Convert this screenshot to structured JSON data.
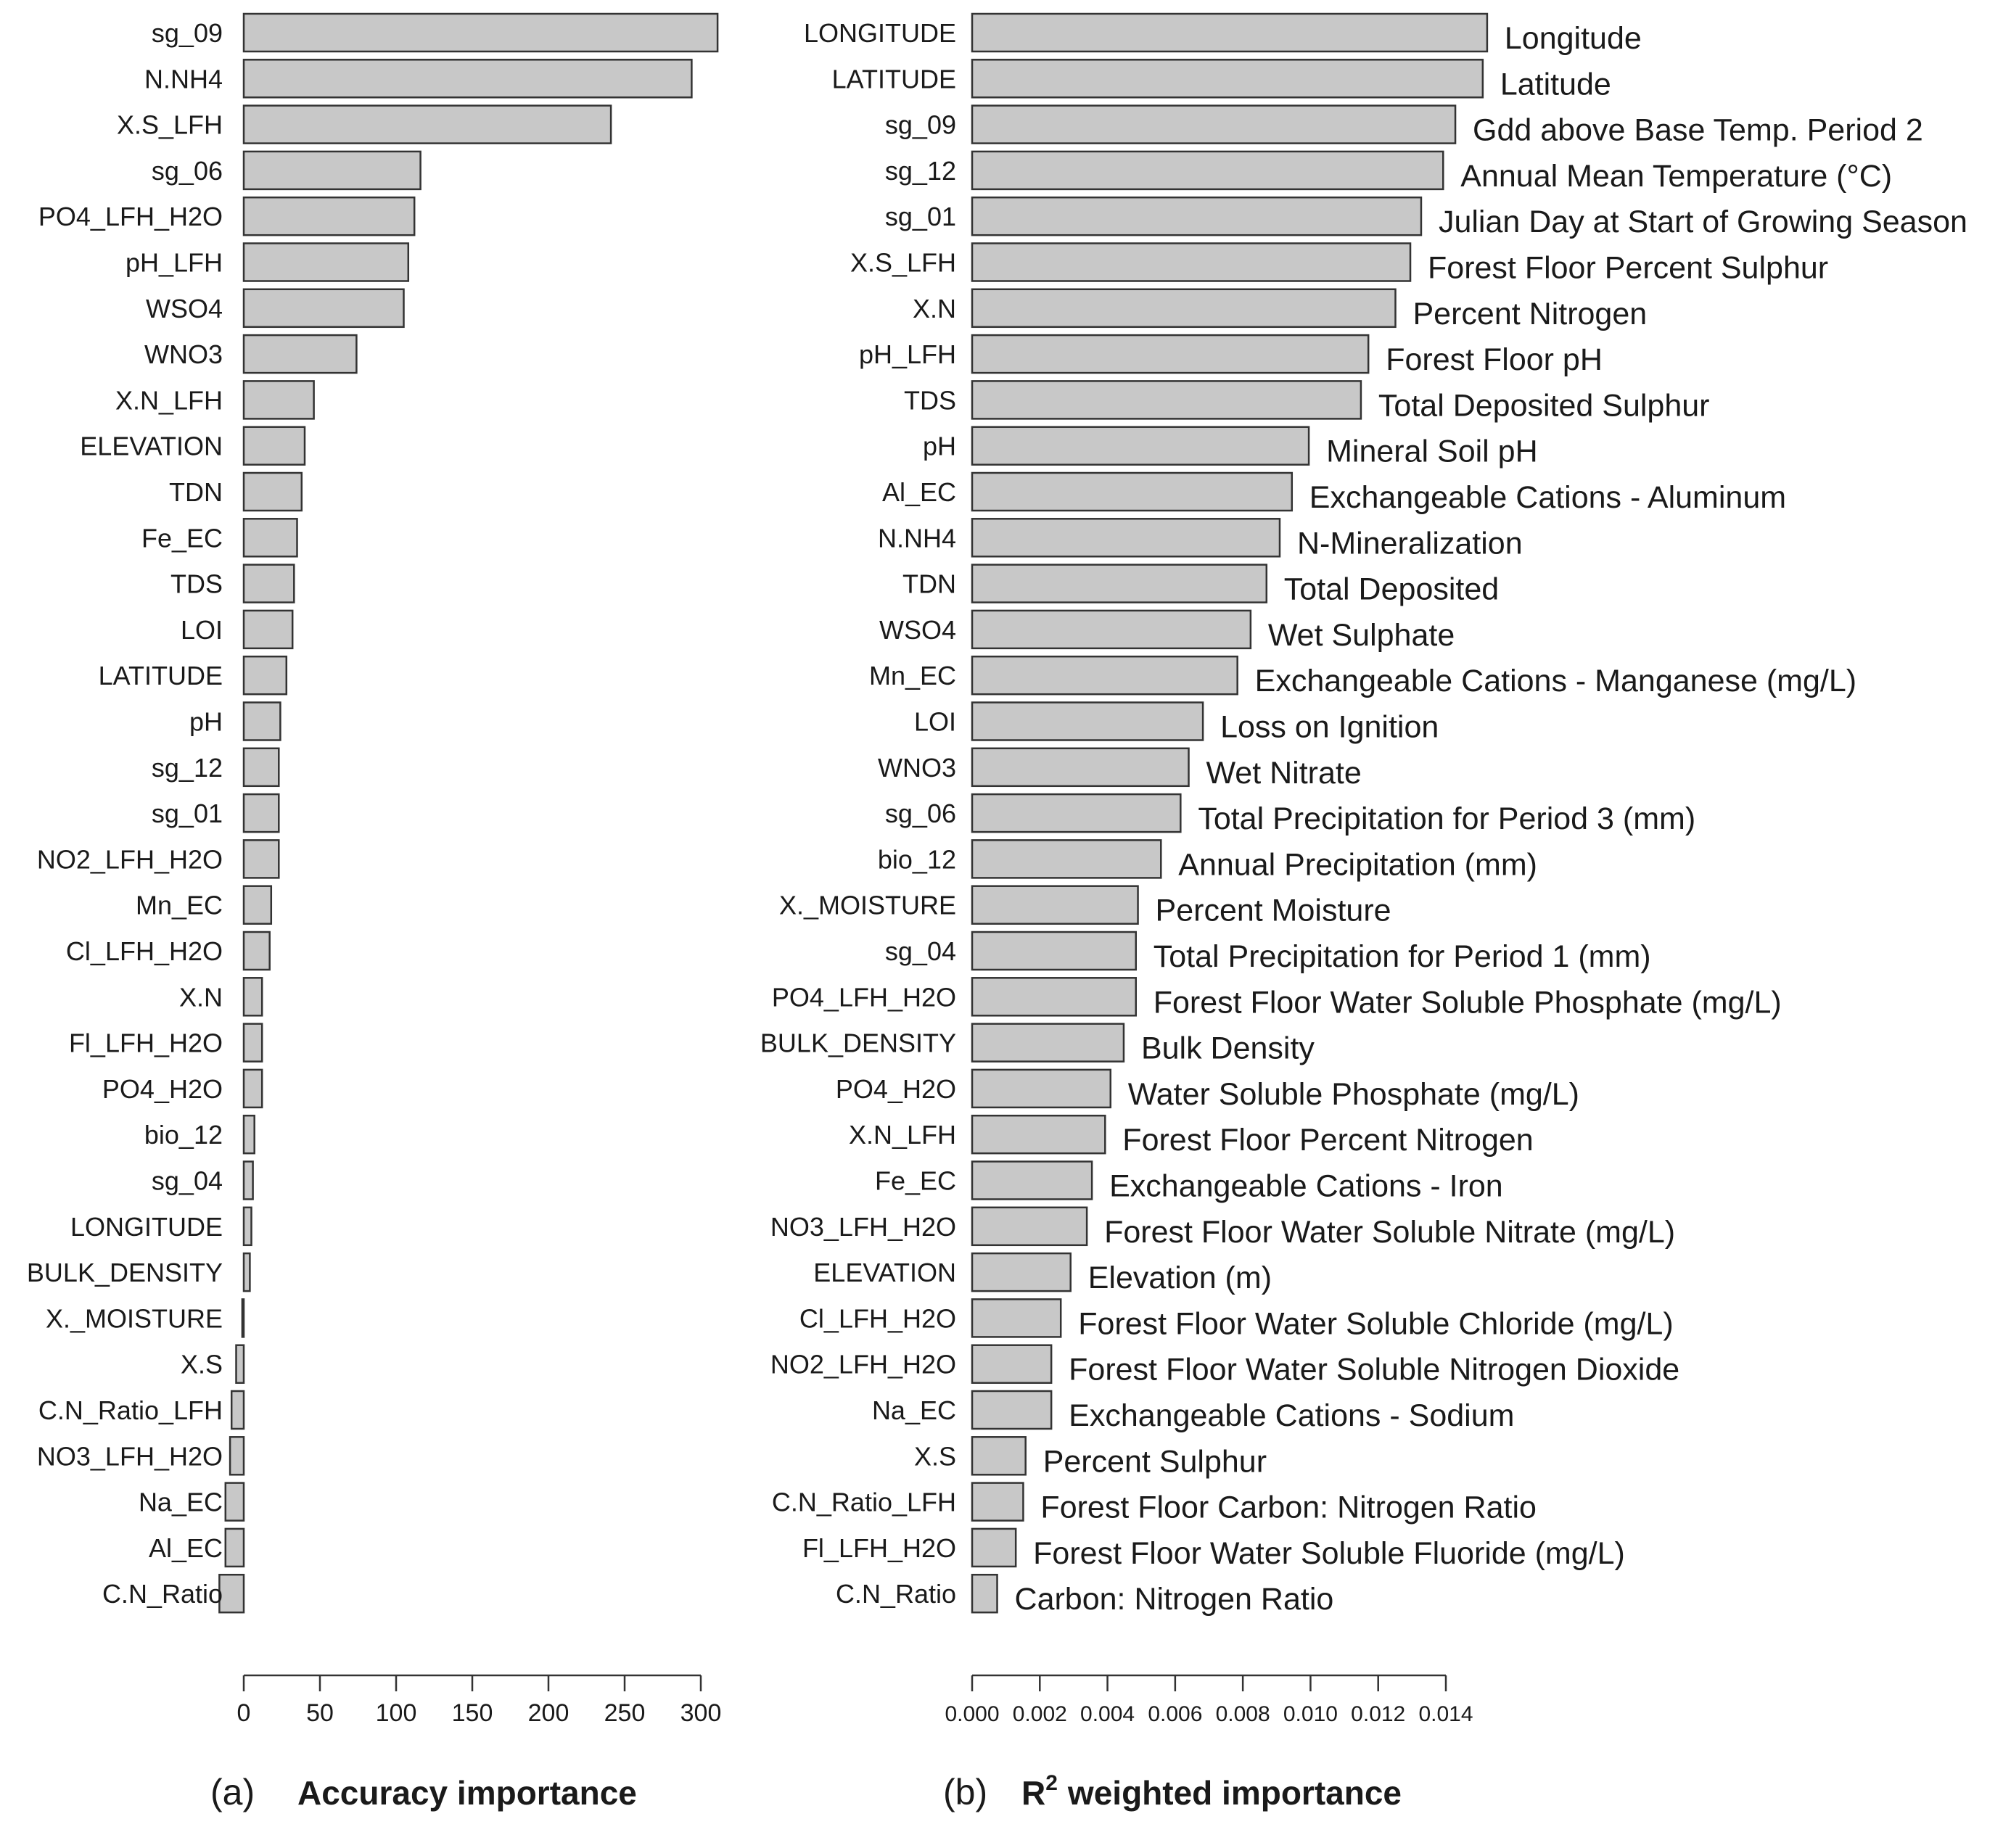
{
  "chart_data": [
    {
      "type": "bar",
      "orientation": "horizontal",
      "panel_tag": "(a)",
      "caption": "Accuracy importance",
      "xlim": [
        0,
        310
      ],
      "x_ticks": [
        0,
        50,
        100,
        150,
        200,
        250,
        300
      ],
      "tick_labels": [
        "0",
        "50",
        "100",
        "150",
        "200",
        "250",
        "300"
      ],
      "bar_color": "#c8c8c8",
      "categories": [
        "sg_09",
        "N.NH4",
        "X.S_LFH",
        "sg_06",
        "PO4_LFH_H2O",
        "pH_LFH",
        "WSO4",
        "WNO3",
        "X.N_LFH",
        "ELEVATION",
        "TDN",
        "Fe_EC",
        "TDS",
        "LOI",
        "LATITUDE",
        "pH",
        "sg_12",
        "sg_01",
        "NO2_LFH_H2O",
        "Mn_EC",
        "Cl_LFH_H2O",
        "X.N",
        "Fl_LFH_H2O",
        "PO4_H2O",
        "bio_12",
        "sg_04",
        "LONGITUDE",
        "BULK_DENSITY",
        "X._MOISTURE",
        "X.S",
        "C.N_Ratio_LFH",
        "NO3_LFH_H2O",
        "Na_EC",
        "Al_EC",
        "C.N_Ratio"
      ],
      "values": [
        311,
        294,
        241,
        116,
        112,
        108,
        105,
        74,
        46,
        40,
        38,
        35,
        33,
        32,
        28,
        24,
        23,
        23,
        23,
        18,
        17,
        12,
        12,
        12,
        7,
        6,
        5,
        4,
        -1,
        -5,
        -8,
        -9,
        -12,
        -12,
        -16
      ]
    },
    {
      "type": "bar",
      "orientation": "horizontal",
      "panel_tag": "(b)",
      "caption_prefix": "R",
      "caption_sup": "2",
      "caption_rest": "weighted importance",
      "xlim": [
        0,
        0.0144
      ],
      "x_ticks": [
        0,
        0.002,
        0.004,
        0.006,
        0.008,
        0.01,
        0.012,
        0.014
      ],
      "tick_labels": [
        "0.000",
        "0.002",
        "0.004",
        "0.006",
        "0.008",
        "0.010",
        "0.012",
        "0.014"
      ],
      "bar_color": "#c8c8c8",
      "categories": [
        "LONGITUDE",
        "LATITUDE",
        "sg_09",
        "sg_12",
        "sg_01",
        "X.S_LFH",
        "X.N",
        "pH_LFH",
        "TDS",
        "pH",
        "Al_EC",
        "N.NH4",
        "TDN",
        "WSO4",
        "Mn_EC",
        "LOI",
        "WNO3",
        "sg_06",
        "bio_12",
        "X._MOISTURE",
        "sg_04",
        "PO4_LFH_H2O",
        "BULK_DENSITY",
        "PO4_H2O",
        "X.N_LFH",
        "Fe_EC",
        "NO3_LFH_H2O",
        "ELEVATION",
        "Cl_LFH_H2O",
        "NO2_LFH_H2O",
        "Na_EC",
        "X.S",
        "C.N_Ratio_LFH",
        "Fl_LFH_H2O",
        "C.N_Ratio"
      ],
      "values": [
        0.01522,
        0.01509,
        0.01428,
        0.01392,
        0.01327,
        0.01295,
        0.01251,
        0.01171,
        0.01149,
        0.00995,
        0.00945,
        0.00909,
        0.0087,
        0.00823,
        0.00784,
        0.00682,
        0.0064,
        0.00616,
        0.00558,
        0.0049,
        0.00484,
        0.00484,
        0.00448,
        0.00409,
        0.00393,
        0.00354,
        0.00339,
        0.00291,
        0.00262,
        0.00234,
        0.00234,
        0.00158,
        0.00151,
        0.00129,
        0.00074
      ],
      "descriptions": [
        "Longitude",
        "Latitude",
        "Gdd above Base Temp. Period 2",
        "Annual Mean Temperature (°C)",
        "Julian Day at Start of Growing Season",
        "Forest Floor Percent Sulphur",
        "Percent Nitrogen",
        "Forest Floor pH",
        "Total Deposited Sulphur",
        "Mineral Soil pH",
        "Exchangeable Cations - Aluminum",
        "N-Mineralization",
        "Total Deposited",
        "Wet Sulphate",
        "Exchangeable Cations - Manganese (mg/L)",
        "Loss on Ignition",
        "Wet Nitrate",
        "Total Precipitation for Period 3 (mm)",
        "Annual Precipitation (mm)",
        "Percent Moisture",
        "Total Precipitation for Period 1 (mm)",
        "Forest Floor Water Soluble Phosphate (mg/L)",
        "Bulk Density",
        "Water Soluble Phosphate (mg/L)",
        "Forest Floor Percent Nitrogen",
        "Exchangeable Cations - Iron",
        "Forest Floor Water Soluble Nitrate (mg/L)",
        "Elevation (m)",
        "Forest Floor Water Soluble Chloride (mg/L)",
        "Forest Floor Water Soluble Nitrogen Dioxide",
        "Exchangeable Cations - Sodium",
        "Percent Sulphur",
        "Forest Floor Carbon: Nitrogen Ratio",
        "Forest Floor Water Soluble Fluoride (mg/L)",
        "Carbon: Nitrogen Ratio"
      ]
    }
  ]
}
